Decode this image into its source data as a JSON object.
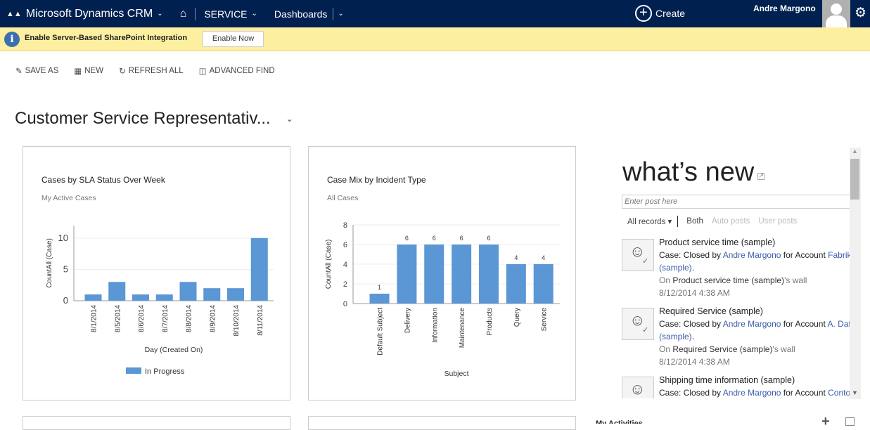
{
  "nav": {
    "app_title": "Microsoft Dynamics CRM",
    "area": "SERVICE",
    "page": "Dashboards",
    "create": "Create",
    "user": "Andre Margono"
  },
  "notification": {
    "text": "Enable Server-Based SharePoint Integration",
    "button": "Enable Now"
  },
  "commands": {
    "save_as": "SAVE AS",
    "new": "NEW",
    "refresh_all": "REFRESH ALL",
    "advanced_find": "ADVANCED FIND"
  },
  "dashboard": {
    "title": "Customer Service Representativ..."
  },
  "colors": {
    "nav_bg": "#002050",
    "bar": "#5b96d5",
    "notif_bg": "#fdefa0",
    "link": "#3b5da8"
  },
  "chart_data": [
    {
      "type": "bar",
      "title": "Cases by SLA Status Over Week",
      "subtitle": "My Active Cases",
      "xlabel": "Day (Created On)",
      "ylabel": "CountAll (Case)",
      "categories": [
        "8/1/2014",
        "8/5/2014",
        "8/6/2014",
        "8/7/2014",
        "8/8/2014",
        "8/9/2014",
        "8/10/2014",
        "8/11/2014"
      ],
      "series": [
        {
          "name": "In Progress",
          "values": [
            1,
            3,
            1,
            1,
            3,
            2,
            2,
            10
          ]
        }
      ],
      "yticks": [
        0,
        5,
        10
      ],
      "ylim": [
        0,
        12
      ],
      "grid": true,
      "legend": "bottom"
    },
    {
      "type": "bar",
      "title": "Case Mix by Incident Type",
      "subtitle": "All Cases",
      "xlabel": "Subject",
      "ylabel": "CountAll (Case)",
      "categories": [
        "Default Subject",
        "Delivery",
        "Information",
        "Maintenance",
        "Products",
        "Query",
        "Service"
      ],
      "values": [
        1,
        6,
        6,
        6,
        6,
        4,
        4
      ],
      "data_labels": true,
      "yticks": [
        0,
        2,
        4,
        6,
        8
      ],
      "ylim": [
        0,
        8
      ],
      "grid": true
    }
  ],
  "whats_new": {
    "title": "what’s new",
    "placeholder": "Enter post here",
    "filter": "All records",
    "tabs": [
      "Both",
      "Auto posts",
      "User posts"
    ],
    "posts": [
      {
        "title": "Product service time (sample)",
        "prefix": "Case: Closed by ",
        "user": "Andre Margono",
        "mid": " for Account ",
        "account": "Fabrikam, Inc.",
        "account_cont": "(sample)",
        "wall_prefix": "On ",
        "wall_record": "Product service time (sample)",
        "wall_suffix": "'s wall",
        "time": "8/12/2014 4:38 AM"
      },
      {
        "title": "Required Service (sample)",
        "prefix": "Case: Closed by ",
        "user": "Andre Margono",
        "mid": " for Account ",
        "account": "A. Datum Corporation",
        "account_cont": "(sample)",
        "wall_prefix": "On ",
        "wall_record": "Required Service (sample)",
        "wall_suffix": "'s wall",
        "time": "8/12/2014 4:38 AM"
      },
      {
        "title": "Shipping time information (sample)",
        "prefix": "Case: Closed by ",
        "user": "Andre Margono",
        "mid": " for Account ",
        "account": "Contoso"
      }
    ]
  },
  "activities": {
    "title": "My Activities"
  }
}
